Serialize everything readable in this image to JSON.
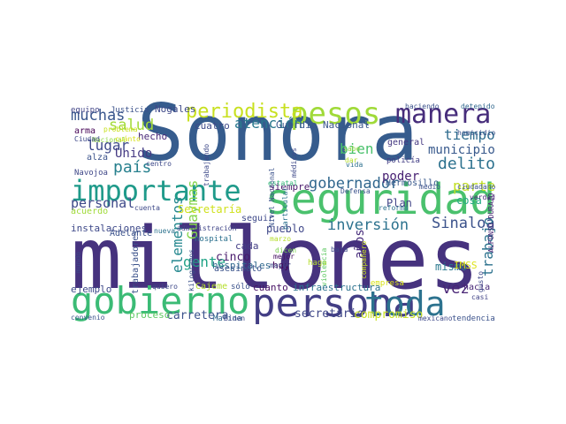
{
  "words": [
    {
      "text": "millones",
      "color": "#46327e"
    },
    {
      "text": "Sonora",
      "color": "#365c8d"
    },
    {
      "text": "seguridad",
      "color": "#4ac16d"
    },
    {
      "text": "importante",
      "color": "#1f9a8a"
    },
    {
      "text": "persona",
      "color": "#433e85"
    },
    {
      "text": "gobierno",
      "color": "#3bbb75"
    },
    {
      "text": "toda",
      "color": "#2c728e"
    },
    {
      "text": "pesos",
      "color": "#a0da39"
    },
    {
      "text": "manera",
      "color": "#472d7b"
    },
    {
      "text": "periodista",
      "color": "#c8e020"
    },
    {
      "text": "muchas",
      "color": "#39568c"
    },
    {
      "text": "salud",
      "color": "#a2da37"
    },
    {
      "text": "atención",
      "color": "#2a788e"
    },
    {
      "text": "Guardia Nacional",
      "color": "#39568c"
    },
    {
      "text": "tiempo",
      "color": "#2f6c8e"
    },
    {
      "text": "lugar",
      "color": "#3e4989"
    },
    {
      "text": "bien",
      "color": "#4ac16d"
    },
    {
      "text": "municipio",
      "color": "#38598c"
    },
    {
      "text": "delito",
      "color": "#2c718e"
    },
    {
      "text": "gobernador",
      "color": "#31678e"
    },
    {
      "text": "país",
      "color": "#27808e"
    },
    {
      "text": "Unido",
      "color": "#443983"
    },
    {
      "text": "parte",
      "color": "#c2df23"
    },
    {
      "text": "personal",
      "color": "#3e4989"
    },
    {
      "text": "Guaymas",
      "color": "#84d44b"
    },
    {
      "text": "elementos",
      "color": "#24878e"
    },
    {
      "text": "inversión",
      "color": "#2c728e"
    },
    {
      "text": "Sinaloa",
      "color": "#3b528b"
    },
    {
      "text": "poder",
      "color": "#482173"
    },
    {
      "text": "gente",
      "color": "#20a386"
    },
    {
      "text": "trabajo",
      "color": "#2c728e"
    },
    {
      "text": "vez",
      "color": "#482475"
    },
    {
      "text": "secretario",
      "color": "#3f4788"
    },
    {
      "text": "carretera",
      "color": "#3b528b"
    },
    {
      "text": "compromiso",
      "color": "#c8e020"
    },
    {
      "text": "instalaciones",
      "color": "#3e4989"
    },
    {
      "text": "Secretaría",
      "color": "#d0e11c"
    },
    {
      "text": "Plan",
      "color": "#414487"
    },
    {
      "text": "cinco",
      "color": "#481a6c"
    },
    {
      "text": "pueblo",
      "color": "#3f4788"
    },
    {
      "text": "hospitales",
      "color": "#30698e"
    },
    {
      "text": "hoy",
      "color": "#440154"
    },
    {
      "text": "mismo",
      "color": "#2a788e"
    },
    {
      "text": "IMSS",
      "color": "#dde318"
    },
    {
      "text": "años",
      "color": "#472d7b"
    },
    {
      "text": "ejemplo",
      "color": "#3e4989"
    },
    {
      "text": "cuanto",
      "color": "#471164"
    },
    {
      "text": "infraestructura",
      "color": "#2c728e"
    },
    {
      "text": "Cajeme",
      "color": "#b5de2b"
    },
    {
      "text": "equipo",
      "color": "#414487"
    },
    {
      "text": "Justicia",
      "color": "#3b528b"
    },
    {
      "text": "Nogales",
      "color": "#3e4989"
    },
    {
      "text": "haciendo",
      "color": "#3b528b"
    },
    {
      "text": "detenido",
      "color": "#31688e"
    },
    {
      "text": "cuatro",
      "color": "#3e4989"
    },
    {
      "text": "arma",
      "color": "#440154"
    },
    {
      "text": "hecho",
      "color": "#482878"
    },
    {
      "text": "Nacional",
      "color": "#8fd744"
    },
    {
      "text": "alza",
      "color": "#3b528b"
    },
    {
      "text": "Navojoa",
      "color": "#3f4788"
    },
    {
      "text": "centro",
      "color": "#3e4989"
    },
    {
      "text": "general",
      "color": "#453882"
    },
    {
      "text": "policía",
      "color": "#433e85"
    },
    {
      "text": "vida",
      "color": "#2d708e"
    },
    {
      "text": "siempre",
      "color": "#48186a"
    },
    {
      "text": "Hermosillo",
      "color": "#38598c"
    },
    {
      "text": "medio",
      "color": "#3b528b"
    },
    {
      "text": "cosa",
      "color": "#23a983"
    },
    {
      "text": "verdad",
      "color": "#482475"
    },
    {
      "text": "acuerdo",
      "color": "#a0da39"
    },
    {
      "text": "cuenta",
      "color": "#3e4989"
    },
    {
      "text": "Adelante",
      "color": "#3b528b"
    },
    {
      "text": "nueva",
      "color": "#2c728e"
    },
    {
      "text": "administración",
      "color": "#404688"
    },
    {
      "text": "seguir",
      "color": "#3e4989"
    },
    {
      "text": "cada",
      "color": "#433e85"
    },
    {
      "text": "hospital",
      "color": "#2c718e"
    },
    {
      "text": "dicen",
      "color": "#7ad151"
    },
    {
      "text": "mejor",
      "color": "#471164"
    },
    {
      "text": "asesinato",
      "color": "#3b528b"
    },
    {
      "text": "haga",
      "color": "#b5de2b"
    },
    {
      "text": "baja",
      "color": "#3e4989"
    },
    {
      "text": "sólo",
      "color": "#3b528b"
    },
    {
      "text": "Marina",
      "color": "#31688e"
    },
    {
      "text": "Biden",
      "color": "#3e4989"
    },
    {
      "text": "convenio",
      "color": "#3b528b"
    },
    {
      "text": "proceso",
      "color": "#5ec962"
    },
    {
      "text": "quiero",
      "color": "#3e4989"
    },
    {
      "text": "hacia",
      "color": "#482878"
    },
    {
      "text": "casi",
      "color": "#414487"
    },
    {
      "text": "tendencia",
      "color": "#3b528b"
    },
    {
      "text": "mexicano",
      "color": "#3e4989"
    },
    {
      "text": "empresa",
      "color": "#d8e219"
    },
    {
      "text": "trabajadores",
      "color": "#3b528b"
    },
    {
      "text": "mundo",
      "color": "#3e4989"
    },
    {
      "text": "kilogramos",
      "color": "#3b528b"
    },
    {
      "text": "trabajando",
      "color": "#3e4989"
    },
    {
      "text": "Nivel Nacional",
      "color": "#3b528b"
    },
    {
      "text": "médicos",
      "color": "#3e4989"
    },
    {
      "text": "particular",
      "color": "#2c728e"
    },
    {
      "text": "estatal",
      "color": "#35b779"
    },
    {
      "text": "sabe",
      "color": "#8fd744"
    },
    {
      "text": "dar",
      "color": "#b5de2b"
    },
    {
      "text": "Defensa",
      "color": "#3b528b"
    },
    {
      "text": "reforma",
      "color": "#2c728e"
    },
    {
      "text": "mayor",
      "color": "#3e4989"
    },
    {
      "text": "marzo",
      "color": "#b5de2b"
    },
    {
      "text": "ciudadano",
      "color": "#3b528b"
    },
    {
      "text": "homicidio",
      "color": "#3b528b"
    },
    {
      "text": "problema",
      "color": "#c8e020"
    },
    {
      "text": "Ciudad",
      "color": "#3e4989"
    },
    {
      "text": "violencia",
      "color": "#5ec962"
    },
    {
      "text": "compañero",
      "color": "#c8e020"
    },
    {
      "text": "gusto",
      "color": "#3e4989"
    },
    {
      "text": "ALFONSO DURAZO",
      "color": "#482475"
    },
    {
      "text": "cuánto",
      "color": "#d8e219"
    }
  ]
}
